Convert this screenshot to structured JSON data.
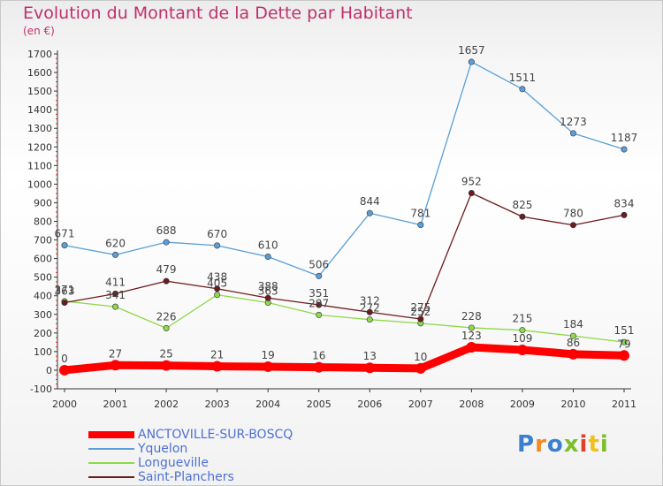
{
  "title": "Evolution du Montant de la Dette par Habitant",
  "unit": "(en €)",
  "logo": {
    "text": "Proxiti",
    "colors": [
      "#3a7fd0",
      "#f08a24",
      "#3a7fd0",
      "#7cbf2a",
      "#e0402a",
      "#f0c020",
      "#7cbf2a"
    ]
  },
  "chart_data": {
    "type": "line",
    "title": "Evolution du Montant de la Dette par Habitant",
    "ylabel": "(en €)",
    "x": [
      "2000",
      "2001",
      "2002",
      "2003",
      "2004",
      "2005",
      "2006",
      "2007",
      "2008",
      "2009",
      "2010",
      "2011"
    ],
    "ylim": [
      -100,
      1700
    ],
    "yticks": [
      -100,
      0,
      100,
      200,
      300,
      400,
      500,
      600,
      700,
      800,
      900,
      1000,
      1100,
      1200,
      1300,
      1400,
      1500,
      1600,
      1700
    ],
    "grid": false,
    "legend": "bottom-left",
    "series": [
      {
        "name": "ANCTOVILLE-SUR-BOSCQ",
        "color": "#ff0000",
        "values": [
          0,
          27,
          25,
          21,
          19,
          16,
          13,
          10,
          123,
          109,
          86,
          79
        ],
        "labels": [
          "0",
          "27",
          "25",
          "21",
          "19",
          "16",
          "13",
          "10",
          "123",
          "109",
          "86",
          "79"
        ]
      },
      {
        "name": "Yquelon",
        "color": "#5a9fd6",
        "values": [
          671,
          620,
          688,
          670,
          610,
          506,
          844,
          781,
          1657,
          1511,
          1273,
          1187
        ],
        "labels": [
          "671",
          "620",
          "688",
          "670",
          "610",
          "506",
          "844",
          "781",
          "1657",
          "1511",
          "1273",
          "1187"
        ]
      },
      {
        "name": "Longueville",
        "color": "#8fd84a",
        "values": [
          371,
          341,
          226,
          405,
          363,
          297,
          272,
          252,
          228,
          215,
          184,
          151
        ],
        "labels": [
          "371",
          "341",
          "226",
          "405",
          "363",
          "297",
          "272",
          "252",
          "228",
          "215",
          "184",
          "151"
        ]
      },
      {
        "name": "Saint-Planchers",
        "color": "#6e1a1a",
        "values": [
          363,
          411,
          479,
          438,
          388,
          351,
          312,
          275,
          952,
          825,
          780,
          834
        ],
        "labels": [
          "363",
          "411",
          "479",
          "438",
          "388",
          "351",
          "312",
          "275",
          "952",
          "825",
          "780",
          "834"
        ]
      }
    ]
  }
}
